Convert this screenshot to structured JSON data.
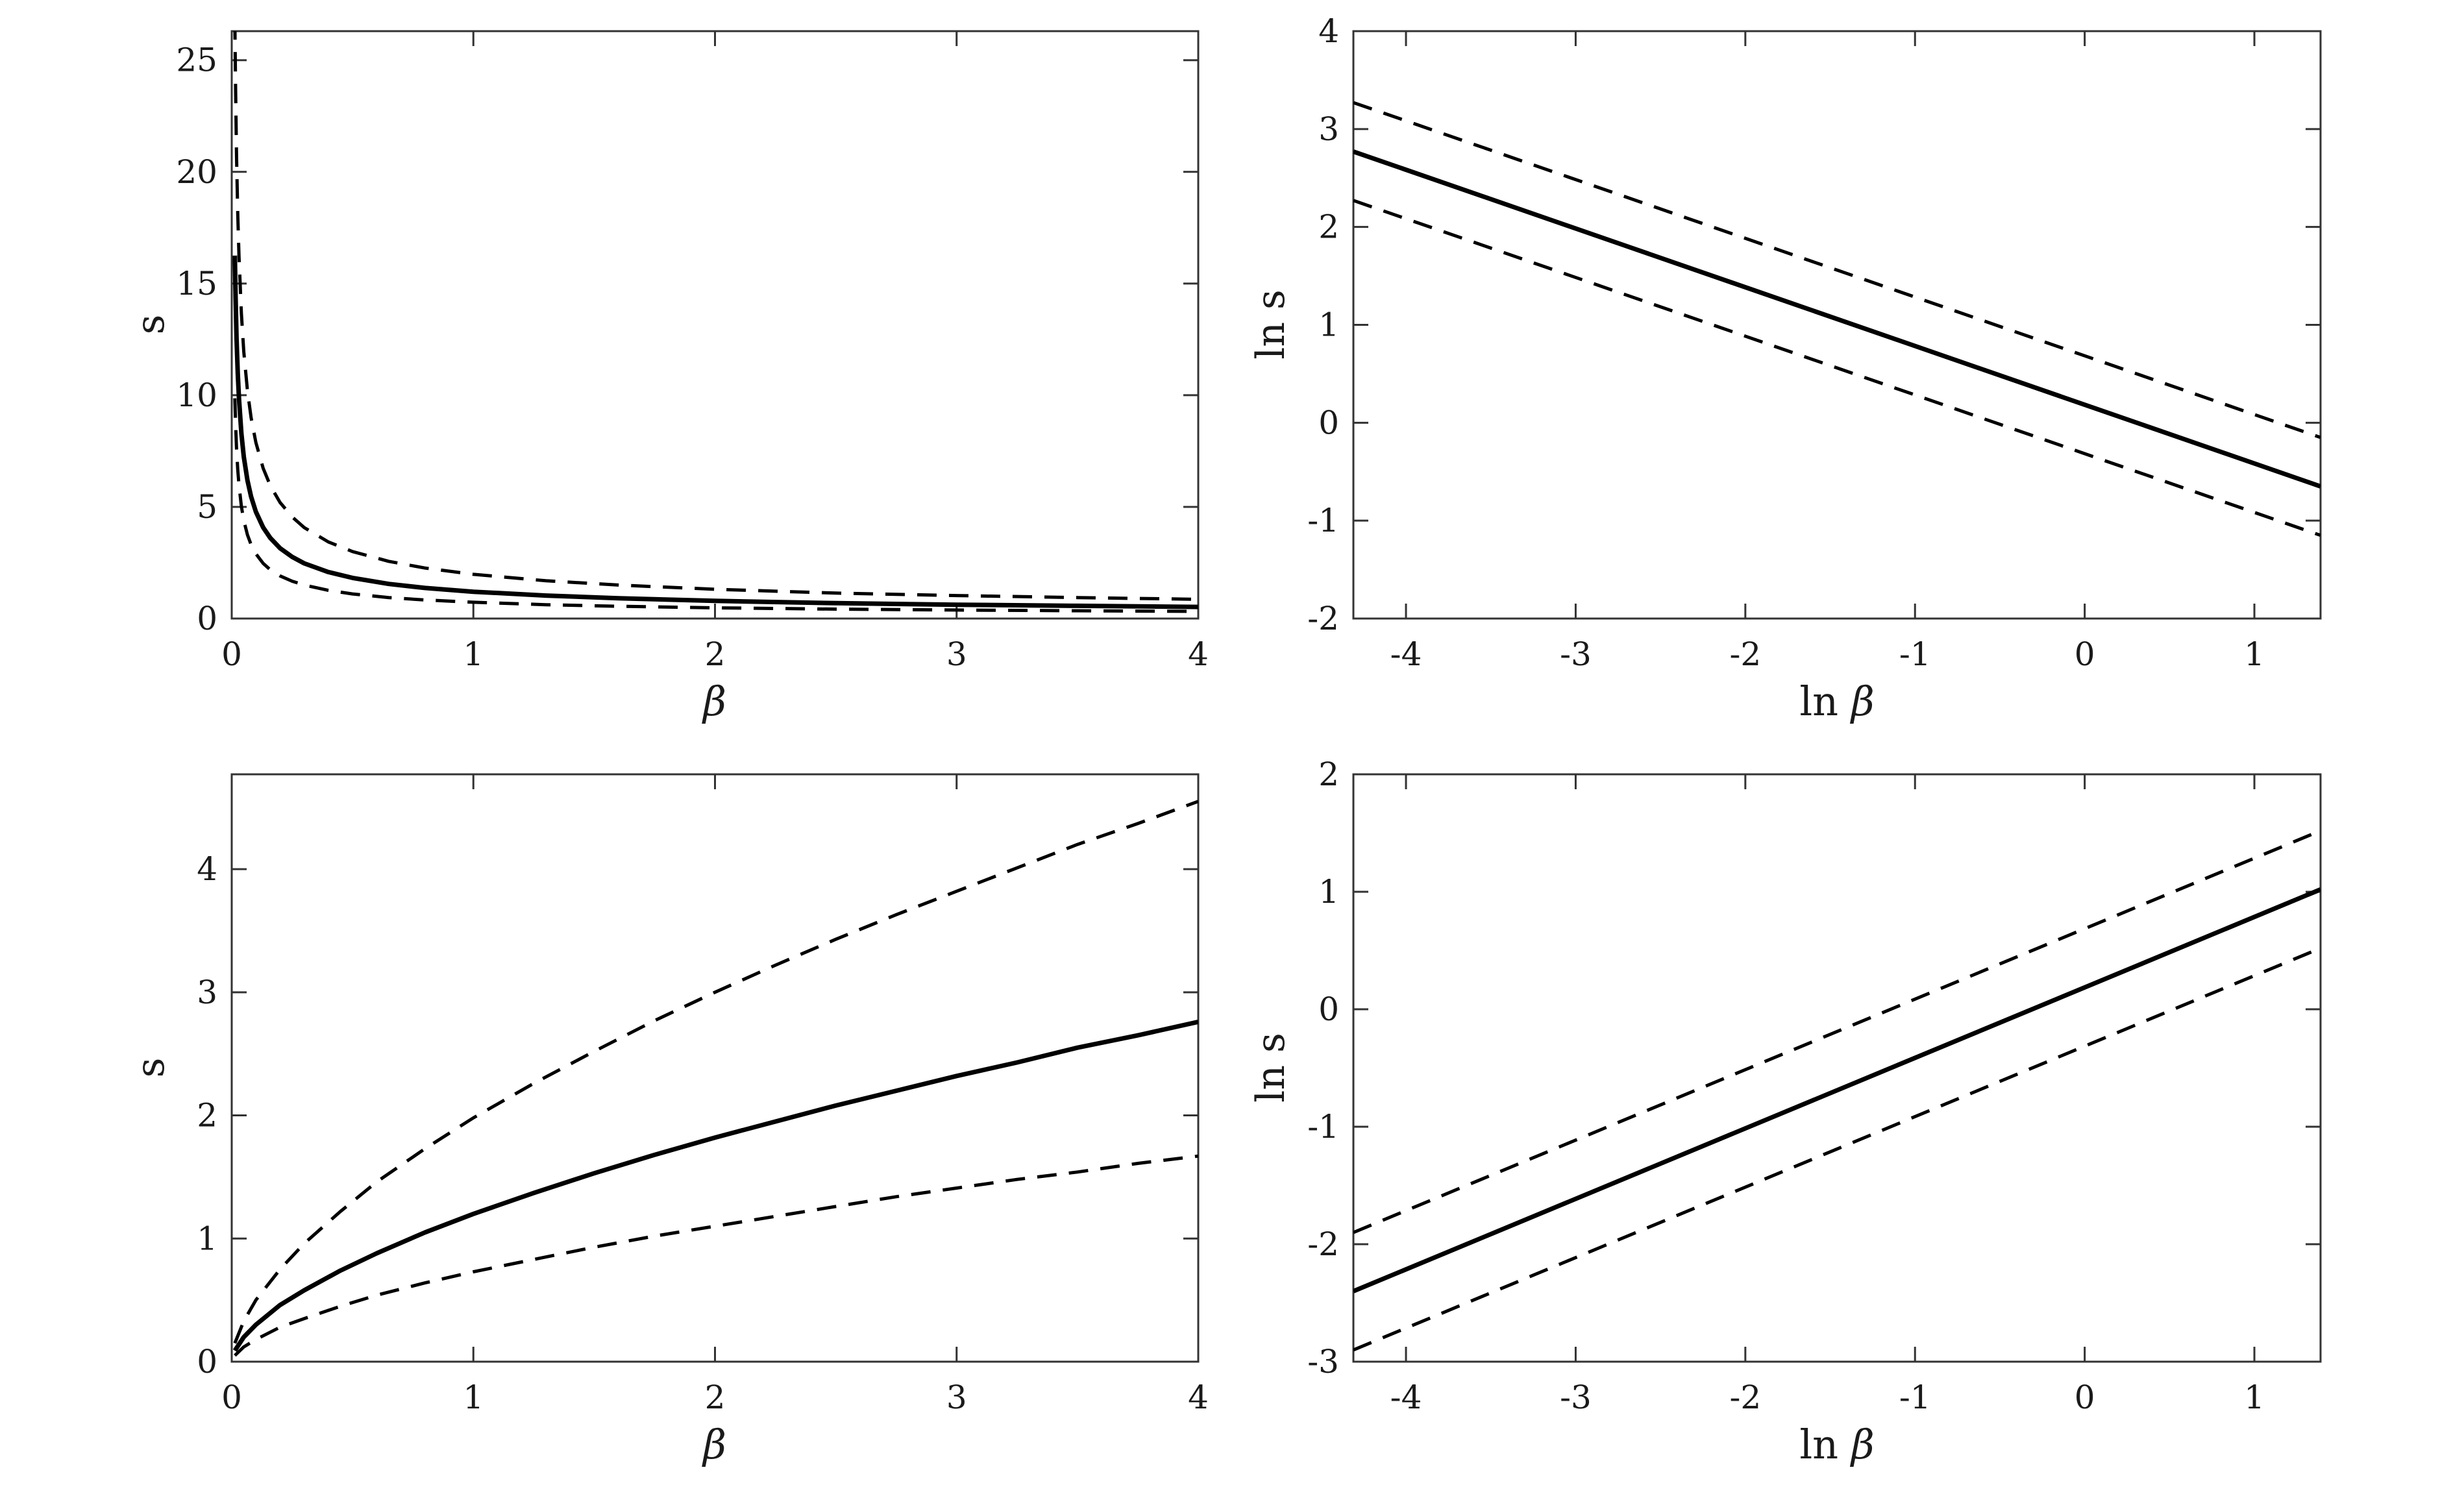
{
  "figure": {
    "background_color": "#ffffff",
    "axes_color": "#333333",
    "curve_color": "#000000",
    "tick_label_color": "#1a1a1a"
  },
  "chart_data": [
    {
      "id": "top-left",
      "type": "line",
      "xlabel": {
        "prefix": "",
        "symbol": "β"
      },
      "ylabel": "s",
      "xlim": [
        0,
        4
      ],
      "ylim": [
        0,
        26.3
      ],
      "grid": false,
      "legend": "none",
      "xticks": [
        {
          "v": 0,
          "label": "0"
        },
        {
          "v": 1,
          "label": "1"
        },
        {
          "v": 2,
          "label": "2"
        },
        {
          "v": 3,
          "label": "3"
        },
        {
          "v": 4,
          "label": "4"
        }
      ],
      "yticks": [
        {
          "v": 0,
          "label": "0"
        },
        {
          "v": 5,
          "label": "5"
        },
        {
          "v": 10,
          "label": "10"
        },
        {
          "v": 15,
          "label": "15"
        },
        {
          "v": 20,
          "label": "20"
        },
        {
          "v": 25,
          "label": "25"
        }
      ],
      "series": [
        {
          "name": "median",
          "style": "solid",
          "x": [
            0.013,
            0.016,
            0.02,
            0.025,
            0.03,
            0.04,
            0.05,
            0.065,
            0.08,
            0.1,
            0.13,
            0.16,
            0.2,
            0.25,
            0.3,
            0.4,
            0.5,
            0.65,
            0.8,
            1,
            1.3,
            1.6,
            2,
            2.5,
            3,
            3.5,
            4
          ],
          "y": [
            16.25,
            14.34,
            12.55,
            10.98,
            9.84,
            8.28,
            7.24,
            6.19,
            5.46,
            4.78,
            4.08,
            3.6,
            3.15,
            2.76,
            2.47,
            2.08,
            1.82,
            1.55,
            1.37,
            1.2,
            1.03,
            0.91,
            0.79,
            0.69,
            0.62,
            0.57,
            0.52
          ]
        },
        {
          "name": "upper-band",
          "style": "dashed",
          "x": [
            0.013,
            0.016,
            0.02,
            0.025,
            0.03,
            0.04,
            0.05,
            0.065,
            0.08,
            0.1,
            0.13,
            0.16,
            0.2,
            0.25,
            0.3,
            0.4,
            0.5,
            0.65,
            0.8,
            1,
            1.3,
            1.6,
            2,
            2.5,
            3,
            3.5,
            4
          ],
          "y": [
            26.79,
            23.64,
            20.7,
            18.1,
            16.22,
            13.65,
            11.94,
            10.21,
            9.0,
            7.88,
            6.73,
            5.94,
            5.2,
            4.55,
            4.07,
            3.43,
            3.0,
            2.56,
            2.26,
            1.98,
            1.69,
            1.5,
            1.31,
            1.14,
            1.03,
            0.94,
            0.86
          ]
        },
        {
          "name": "lower-band",
          "style": "dashed",
          "x": [
            0.013,
            0.016,
            0.02,
            0.025,
            0.03,
            0.04,
            0.05,
            0.065,
            0.08,
            0.1,
            0.13,
            0.16,
            0.2,
            0.25,
            0.3,
            0.4,
            0.5,
            0.65,
            0.8,
            1,
            1.3,
            1.6,
            2,
            2.5,
            3,
            3.5,
            4
          ],
          "y": [
            9.86,
            8.7,
            7.61,
            6.66,
            5.97,
            5.02,
            4.39,
            3.75,
            3.31,
            2.9,
            2.47,
            2.18,
            1.91,
            1.67,
            1.5,
            1.26,
            1.1,
            0.94,
            0.83,
            0.73,
            0.62,
            0.55,
            0.48,
            0.42,
            0.38,
            0.35,
            0.32
          ]
        }
      ]
    },
    {
      "id": "top-right",
      "type": "line",
      "xlabel": {
        "prefix": "ln ",
        "symbol": "β"
      },
      "ylabel": "ln s",
      "xlim": [
        -4.31,
        1.39
      ],
      "ylim": [
        -2,
        4
      ],
      "grid": false,
      "legend": "none",
      "xticks": [
        {
          "v": -4,
          "label": "-4"
        },
        {
          "v": -3,
          "label": "-3"
        },
        {
          "v": -2,
          "label": "-2"
        },
        {
          "v": -1,
          "label": "-1"
        },
        {
          "v": 0,
          "label": "0"
        },
        {
          "v": 1,
          "label": "1"
        }
      ],
      "yticks": [
        {
          "v": -2,
          "label": "-2"
        },
        {
          "v": -1,
          "label": "-1"
        },
        {
          "v": 0,
          "label": "0"
        },
        {
          "v": 1,
          "label": "1"
        },
        {
          "v": 2,
          "label": "2"
        },
        {
          "v": 3,
          "label": "3"
        },
        {
          "v": 4,
          "label": "4"
        }
      ],
      "series": [
        {
          "name": "median",
          "style": "solid",
          "x": [
            -4.31,
            1.39
          ],
          "y": [
            2.77,
            -0.65
          ]
        },
        {
          "name": "upper-band",
          "style": "dashed",
          "x": [
            -4.31,
            1.39
          ],
          "y": [
            3.27,
            -0.15
          ]
        },
        {
          "name": "lower-band",
          "style": "dashed",
          "x": [
            -4.31,
            1.39
          ],
          "y": [
            2.27,
            -1.15
          ]
        }
      ]
    },
    {
      "id": "bottom-left",
      "type": "line",
      "xlabel": {
        "prefix": "",
        "symbol": "β"
      },
      "ylabel": "s",
      "xlim": [
        0,
        4
      ],
      "ylim": [
        0,
        4.77
      ],
      "grid": false,
      "legend": "none",
      "xticks": [
        {
          "v": 0,
          "label": "0"
        },
        {
          "v": 1,
          "label": "1"
        },
        {
          "v": 2,
          "label": "2"
        },
        {
          "v": 3,
          "label": "3"
        },
        {
          "v": 4,
          "label": "4"
        }
      ],
      "yticks": [
        {
          "v": 0,
          "label": "0"
        },
        {
          "v": 1,
          "label": "1"
        },
        {
          "v": 2,
          "label": "2"
        },
        {
          "v": 3,
          "label": "3"
        },
        {
          "v": 4,
          "label": "4"
        }
      ],
      "series": [
        {
          "name": "median",
          "style": "solid",
          "x": [
            0.013,
            0.05,
            0.1,
            0.2,
            0.3,
            0.45,
            0.6,
            0.8,
            1,
            1.25,
            1.5,
            1.75,
            2,
            2.25,
            2.5,
            2.75,
            3,
            3.25,
            3.5,
            3.75,
            4
          ],
          "y": [
            0.09,
            0.2,
            0.3,
            0.46,
            0.58,
            0.74,
            0.88,
            1.05,
            1.2,
            1.37,
            1.53,
            1.68,
            1.82,
            1.95,
            2.08,
            2.2,
            2.32,
            2.43,
            2.55,
            2.65,
            2.76
          ]
        },
        {
          "name": "upper-band",
          "style": "dashed",
          "x": [
            0.013,
            0.05,
            0.1,
            0.2,
            0.3,
            0.45,
            0.6,
            0.8,
            1,
            1.25,
            1.5,
            1.75,
            2,
            2.25,
            2.5,
            2.75,
            3,
            3.25,
            3.5,
            3.75,
            4
          ],
          "y": [
            0.15,
            0.33,
            0.5,
            0.75,
            0.96,
            1.22,
            1.46,
            1.73,
            1.98,
            2.26,
            2.52,
            2.77,
            3.0,
            3.22,
            3.43,
            3.63,
            3.82,
            4.01,
            4.2,
            4.37,
            4.55
          ]
        },
        {
          "name": "lower-band",
          "style": "dashed",
          "x": [
            0.013,
            0.05,
            0.1,
            0.2,
            0.3,
            0.45,
            0.6,
            0.8,
            1,
            1.25,
            1.5,
            1.75,
            2,
            2.25,
            2.5,
            2.75,
            3,
            3.25,
            3.5,
            3.75,
            4
          ],
          "y": [
            0.05,
            0.12,
            0.18,
            0.28,
            0.35,
            0.45,
            0.54,
            0.64,
            0.73,
            0.83,
            0.93,
            1.02,
            1.1,
            1.18,
            1.26,
            1.34,
            1.41,
            1.48,
            1.54,
            1.61,
            1.67
          ]
        }
      ]
    },
    {
      "id": "bottom-right",
      "type": "line",
      "xlabel": {
        "prefix": "ln ",
        "symbol": "β"
      },
      "ylabel": "ln s",
      "xlim": [
        -4.31,
        1.39
      ],
      "ylim": [
        -3,
        2
      ],
      "grid": false,
      "legend": "none",
      "xticks": [
        {
          "v": -4,
          "label": "-4"
        },
        {
          "v": -3,
          "label": "-3"
        },
        {
          "v": -2,
          "label": "-2"
        },
        {
          "v": -1,
          "label": "-1"
        },
        {
          "v": 0,
          "label": "0"
        },
        {
          "v": 1,
          "label": "1"
        }
      ],
      "yticks": [
        {
          "v": -3,
          "label": "-3"
        },
        {
          "v": -2,
          "label": "-2"
        },
        {
          "v": -1,
          "label": "-1"
        },
        {
          "v": 0,
          "label": "0"
        },
        {
          "v": 1,
          "label": "1"
        },
        {
          "v": 2,
          "label": "2"
        }
      ],
      "series": [
        {
          "name": "median",
          "style": "solid",
          "x": [
            -4.31,
            1.39
          ],
          "y": [
            -2.4,
            1.02
          ]
        },
        {
          "name": "upper-band",
          "style": "dashed",
          "x": [
            -4.31,
            1.39
          ],
          "y": [
            -1.9,
            1.52
          ]
        },
        {
          "name": "lower-band",
          "style": "dashed",
          "x": [
            -4.31,
            1.39
          ],
          "y": [
            -2.9,
            0.52
          ]
        }
      ]
    }
  ]
}
